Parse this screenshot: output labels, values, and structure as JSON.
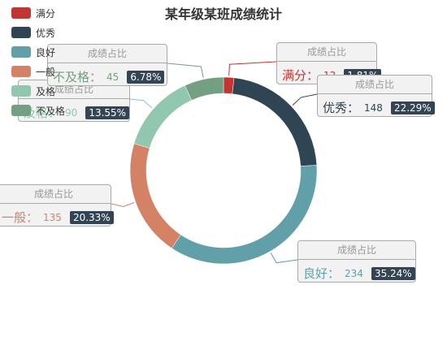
{
  "chart_data": {
    "type": "pie",
    "title": "某年级某班成绩统计",
    "tooltip_title": "成绩占比",
    "colon": "：",
    "legend_position": "top-left",
    "slices": [
      {
        "name": "满分",
        "value": 12,
        "percent": "1.81%",
        "color": "#c23531"
      },
      {
        "name": "优秀",
        "value": 148,
        "percent": "22.29%",
        "color": "#2f4554"
      },
      {
        "name": "良好",
        "value": 234,
        "percent": "35.24%",
        "color": "#61a0a8"
      },
      {
        "name": "一般",
        "value": 135,
        "percent": "20.33%",
        "color": "#d48265"
      },
      {
        "name": "及格",
        "value": 90,
        "percent": "13.55%",
        "color": "#91c7ae"
      },
      {
        "name": "不及格",
        "value": 45,
        "percent": "6.78%",
        "color": "#749f83"
      }
    ]
  }
}
